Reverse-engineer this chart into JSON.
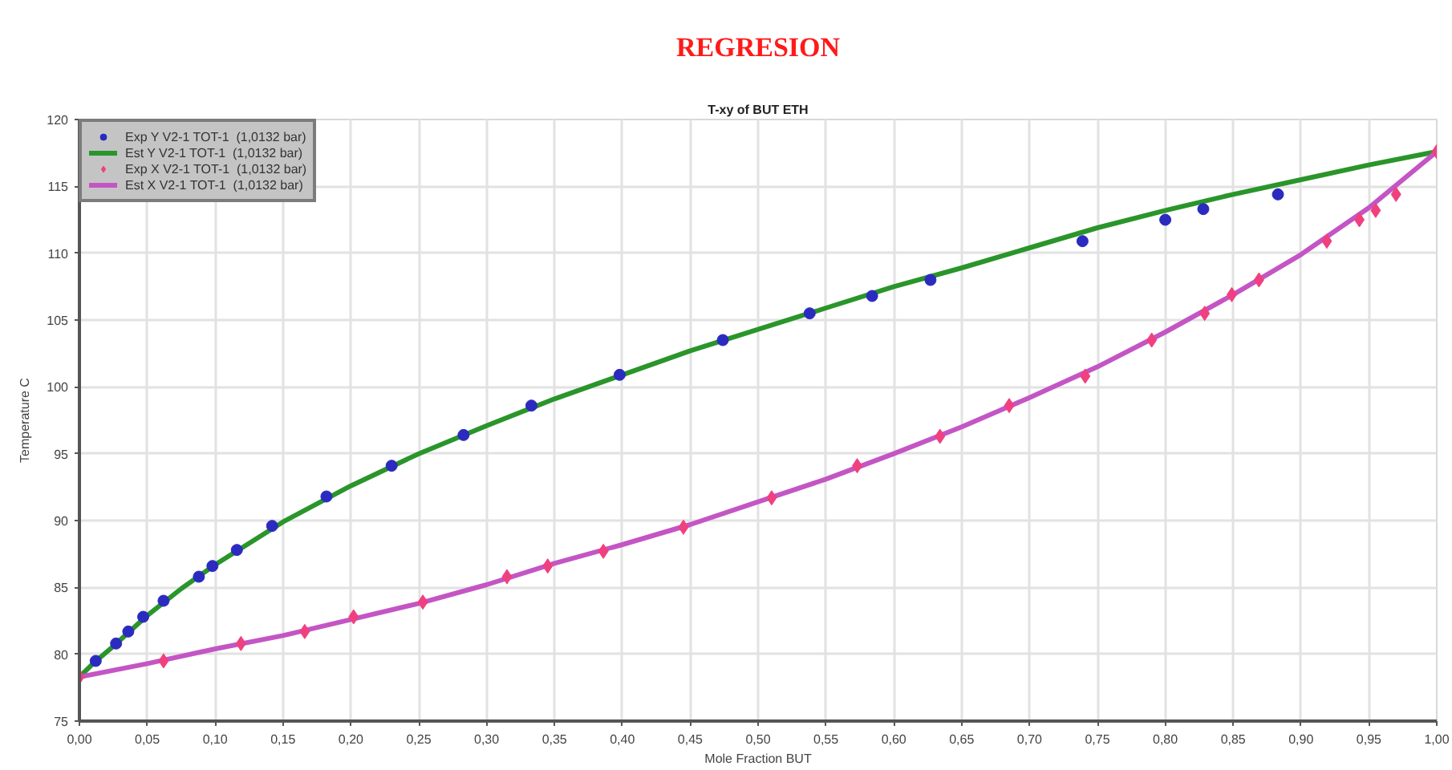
{
  "chart_data": {
    "type": "scatter",
    "title": "REGRESION",
    "subtitle": "T-xy of BUT ETH",
    "xlabel": "Mole Fraction BUT",
    "ylabel": "Temperature C",
    "xlim": [
      0,
      1
    ],
    "ylim": [
      75,
      120
    ],
    "xticks": [
      {
        "value": 0,
        "label": "0,00"
      },
      {
        "value": 0.05,
        "label": "0,05"
      },
      {
        "value": 0.1,
        "label": "0,10"
      },
      {
        "value": 0.15,
        "label": "0,15"
      },
      {
        "value": 0.2,
        "label": "0,20"
      },
      {
        "value": 0.25,
        "label": "0,25"
      },
      {
        "value": 0.3,
        "label": "0,30"
      },
      {
        "value": 0.35,
        "label": "0,35"
      },
      {
        "value": 0.4,
        "label": "0,40"
      },
      {
        "value": 0.45,
        "label": "0,45"
      },
      {
        "value": 0.5,
        "label": "0,50"
      },
      {
        "value": 0.55,
        "label": "0,55"
      },
      {
        "value": 0.6,
        "label": "0,60"
      },
      {
        "value": 0.65,
        "label": "0,65"
      },
      {
        "value": 0.7,
        "label": "0,70"
      },
      {
        "value": 0.75,
        "label": "0,75"
      },
      {
        "value": 0.8,
        "label": "0,80"
      },
      {
        "value": 0.85,
        "label": "0,85"
      },
      {
        "value": 0.9,
        "label": "0,90"
      },
      {
        "value": 0.95,
        "label": "0,95"
      },
      {
        "value": 1,
        "label": "1,00"
      }
    ],
    "yticks": [
      75,
      80,
      85,
      90,
      95,
      100,
      105,
      110,
      115,
      120
    ],
    "grid": true,
    "legend": "top left",
    "line_style": "solid",
    "series": [
      {
        "name": "Exp Y V2-1 TOT-1  (1,0132 bar)",
        "marker": "circle",
        "color": "#2b2bbf",
        "x": [
          0.012,
          0.027,
          0.036,
          0.047,
          0.062,
          0.088,
          0.098,
          0.116,
          0.142,
          0.182,
          0.23,
          0.283,
          0.333,
          0.398,
          0.474,
          0.538,
          0.584,
          0.627,
          0.739,
          0.8,
          0.828,
          0.883
        ],
        "values": [
          79.5,
          80.8,
          81.7,
          82.8,
          84.0,
          85.8,
          86.6,
          87.8,
          89.6,
          91.8,
          94.1,
          96.4,
          98.6,
          100.9,
          103.5,
          105.5,
          106.8,
          108.0,
          110.9,
          112.5,
          113.3,
          114.4
        ]
      },
      {
        "name": "Est Y V2-1 TOT-1  (1,0132 bar)",
        "type": "line",
        "color": "#2a952a",
        "x": [
          0,
          0.01,
          0.025,
          0.05,
          0.075,
          0.1,
          0.15,
          0.2,
          0.25,
          0.3,
          0.35,
          0.4,
          0.45,
          0.5,
          0.55,
          0.6,
          0.65,
          0.7,
          0.75,
          0.8,
          0.85,
          0.9,
          0.95,
          1
        ],
        "values": [
          78.3,
          79.3,
          80.6,
          82.9,
          84.9,
          86.7,
          89.9,
          92.6,
          95.0,
          97.1,
          99.1,
          100.9,
          102.7,
          104.3,
          105.9,
          107.5,
          108.9,
          110.4,
          111.9,
          113.2,
          114.4,
          115.5,
          116.6,
          117.6
        ]
      },
      {
        "name": "Exp X V2-1 TOT-1  (1,0132 bar)",
        "marker": "diamond",
        "color": "#f0407f",
        "x": [
          0,
          0.062,
          0.119,
          0.166,
          0.202,
          0.253,
          0.315,
          0.345,
          0.386,
          0.445,
          0.51,
          0.573,
          0.634,
          0.685,
          0.741,
          0.79,
          0.829,
          0.849,
          0.869,
          0.919,
          0.943,
          0.955,
          0.97,
          1
        ],
        "values": [
          78.3,
          79.5,
          80.8,
          81.7,
          82.8,
          83.9,
          85.8,
          86.6,
          87.7,
          89.5,
          91.7,
          94.1,
          96.3,
          98.6,
          100.8,
          103.5,
          105.5,
          106.9,
          108.0,
          110.9,
          112.5,
          113.2,
          114.4,
          117.6
        ]
      },
      {
        "name": "Est X V2-1 TOT-1  (1,0132 bar)",
        "type": "line",
        "color": "#c455c4",
        "x": [
          0,
          0.05,
          0.1,
          0.15,
          0.2,
          0.25,
          0.3,
          0.35,
          0.4,
          0.45,
          0.5,
          0.55,
          0.6,
          0.65,
          0.7,
          0.75,
          0.8,
          0.85,
          0.9,
          0.95,
          1
        ],
        "values": [
          78.3,
          79.3,
          80.4,
          81.4,
          82.6,
          83.8,
          85.2,
          86.8,
          88.2,
          89.7,
          91.4,
          93.1,
          95.0,
          97.0,
          99.2,
          101.5,
          104.1,
          106.9,
          109.9,
          113.4,
          117.6
        ]
      }
    ]
  }
}
